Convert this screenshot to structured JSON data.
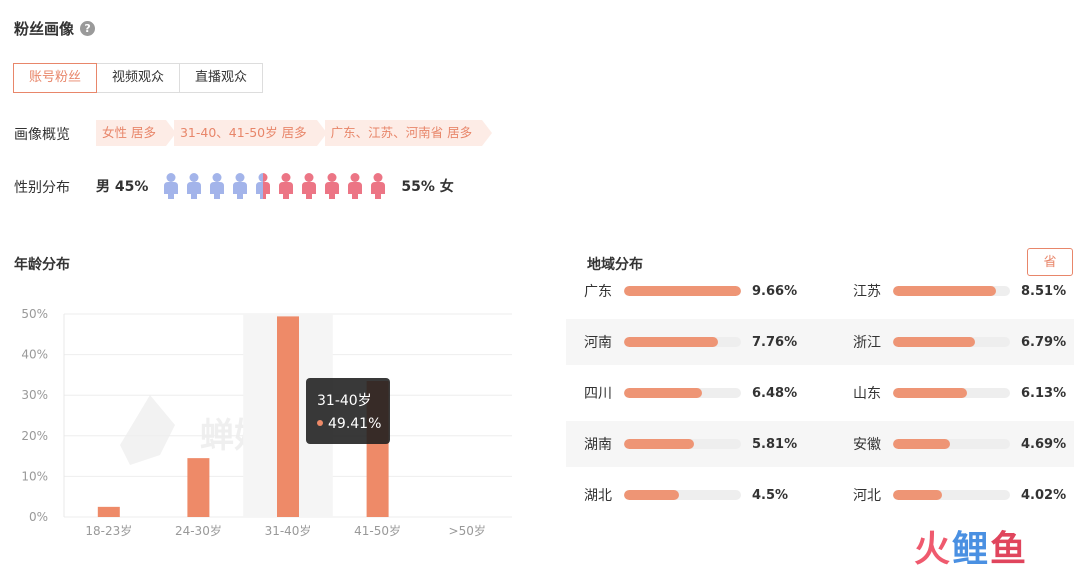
{
  "header": {
    "title": "粉丝画像",
    "help_icon": "question-circle-icon"
  },
  "tabs": [
    {
      "label": "账号粉丝",
      "active": true
    },
    {
      "label": "视频观众",
      "active": false
    },
    {
      "label": "直播观众",
      "active": false
    }
  ],
  "overview": {
    "label": "画像概览",
    "tags": [
      "女性 居多",
      "31-40、41-50岁 居多",
      "广东、江苏、河南省 居多"
    ]
  },
  "gender": {
    "label": "性别分布",
    "male_text": "男 45%",
    "female_text": "55% 女",
    "male_pct": 45,
    "female_pct": 55,
    "male_color": "#a3b4ea",
    "female_color": "#ec7585"
  },
  "age": {
    "title": "年龄分布",
    "watermark": "蝉妈妈",
    "tooltip": {
      "category": "31-40岁",
      "value": "49.41%"
    }
  },
  "region": {
    "title": "地域分布",
    "button": "省",
    "items": [
      {
        "name": "广东",
        "value": "9.66%",
        "pct": 9.66
      },
      {
        "name": "江苏",
        "value": "8.51%",
        "pct": 8.51
      },
      {
        "name": "河南",
        "value": "7.76%",
        "pct": 7.76
      },
      {
        "name": "浙江",
        "value": "6.79%",
        "pct": 6.79
      },
      {
        "name": "四川",
        "value": "6.48%",
        "pct": 6.48
      },
      {
        "name": "山东",
        "value": "6.13%",
        "pct": 6.13
      },
      {
        "name": "湖南",
        "value": "5.81%",
        "pct": 5.81
      },
      {
        "name": "安徽",
        "value": "4.69%",
        "pct": 4.69
      },
      {
        "name": "湖北",
        "value": "4.5%",
        "pct": 4.5
      },
      {
        "name": "河北",
        "value": "4.02%",
        "pct": 4.02
      }
    ]
  },
  "brand": {
    "logo_text": "火鲤鱼"
  },
  "chart_data": {
    "type": "bar",
    "categories": [
      "18-23岁",
      "24-30岁",
      "31-40岁",
      "41-50岁",
      ">50岁"
    ],
    "values": [
      2.5,
      14.5,
      49.41,
      33.5,
      0
    ],
    "ylim": [
      0,
      50
    ],
    "yticks": [
      "0%",
      "10%",
      "20%",
      "30%",
      "40%",
      "50%"
    ],
    "highlight_category": "31-40岁",
    "bar_color": "#ee8a68",
    "grid": true
  }
}
